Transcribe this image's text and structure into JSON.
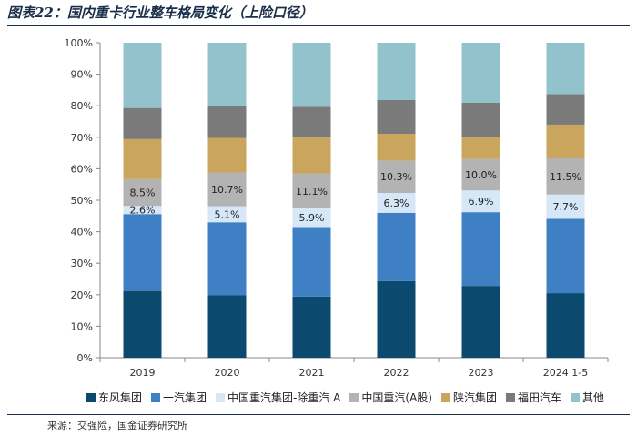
{
  "title": "图表22：国内重卡行业整车格局变化（上险口径）",
  "source": "来源：交强险，国金证券研究所",
  "chart_data": {
    "type": "bar",
    "stacked": true,
    "categories": [
      "2019",
      "2020",
      "2021",
      "2022",
      "2023",
      "2024 1-5"
    ],
    "ylim": [
      0,
      100
    ],
    "yticks": [
      "0%",
      "10%",
      "20%",
      "30%",
      "40%",
      "50%",
      "60%",
      "70%",
      "80%",
      "90%",
      "100%"
    ],
    "legend_position": "bottom",
    "series": [
      {
        "name": "东风集团",
        "color": "#0b4a6e",
        "values": [
          21.2,
          19.8,
          19.4,
          24.3,
          22.8,
          20.5
        ]
      },
      {
        "name": "一汽集团",
        "color": "#3f80c4",
        "values": [
          24.4,
          23.2,
          22.1,
          21.7,
          23.4,
          23.6
        ]
      },
      {
        "name": "中国重汽集团-除重汽 A",
        "color": "#d6e7f7",
        "values": [
          2.6,
          5.1,
          5.9,
          6.3,
          6.9,
          7.7
        ],
        "labels": [
          "2.6%",
          "5.1%",
          "5.9%",
          "6.3%",
          "6.9%",
          "7.7%"
        ]
      },
      {
        "name": "中国重汽(A股)",
        "color": "#b3b3b3",
        "values": [
          8.5,
          10.7,
          11.1,
          10.3,
          10.0,
          11.5
        ],
        "labels": [
          "8.5%",
          "10.7%",
          "11.1%",
          "10.3%",
          "10.0%",
          "11.5%"
        ]
      },
      {
        "name": "陕汽集团",
        "color": "#c9a55d",
        "values": [
          12.7,
          11.0,
          11.4,
          8.5,
          7.1,
          10.7
        ]
      },
      {
        "name": "福田汽车",
        "color": "#7a7a7a",
        "values": [
          9.9,
          10.3,
          9.8,
          10.7,
          10.8,
          9.7
        ]
      },
      {
        "name": "其他",
        "color": "#92c3cd",
        "values": [
          20.7,
          19.9,
          20.3,
          18.2,
          19.0,
          16.3
        ]
      }
    ]
  }
}
